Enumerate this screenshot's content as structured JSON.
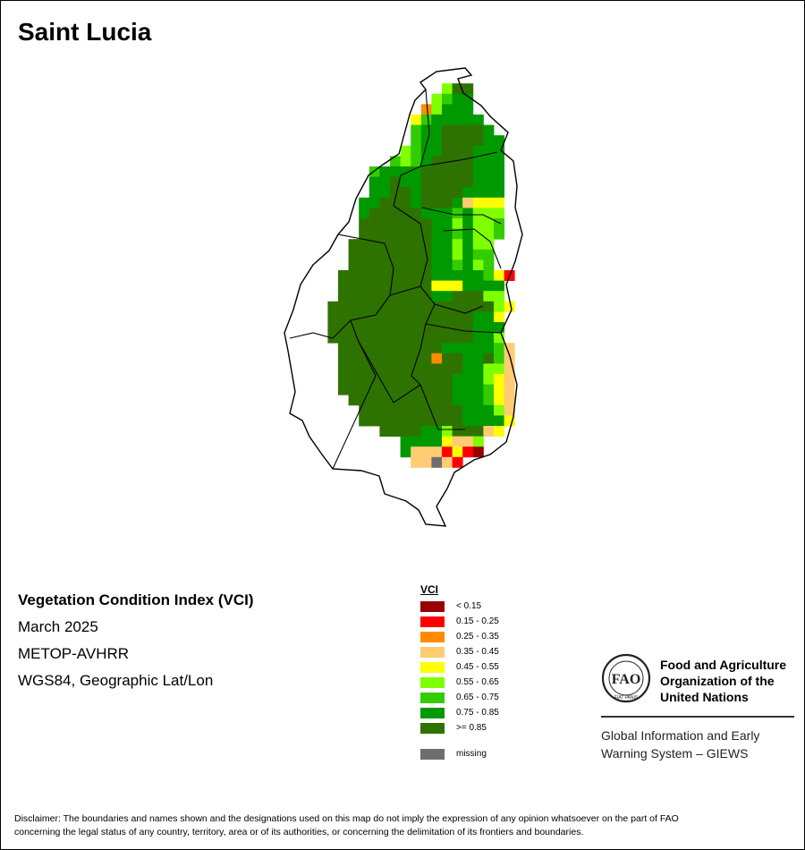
{
  "page": {
    "title": "Saint Lucia"
  },
  "map": {
    "country": "Saint Lucia",
    "grid_cols": 23,
    "grid_rows": 40,
    "code_meaning": {
      "0": "outside",
      "1": "< 0.15",
      "2": "0.15 - 0.25",
      "3": "0.25 - 0.35",
      "4": "0.35 - 0.45",
      "5": "0.45 - 0.55",
      "6": "0.55 - 0.65",
      "7": "0.65 - 0.75",
      "8": "0.75 - 0.85",
      "9": ">= 0.85",
      "m": "missing"
    },
    "cells": [
      "00000000000000000000000",
      "00000000000000000000000",
      "00000000000000069900000",
      "00000000000000678800000",
      "00000000000003688800000",
      "00000000000057888880000",
      "00000000000078899998000",
      "00000000000078899998800",
      "00000000000678899988800",
      "00000000007678999988800",
      "00000000788889999988800",
      "00000000889889999988800",
      "00000000889989999888800",
      "00000008899989998455500",
      "00000008999998887866600",
      "00000009999999886866700",
      "00000009999999887866700",
      "00000099999999886866000",
      "00000099999999886877000",
      "00000099999999887867000",
      "00000999999999888887520",
      "00000999999999555888800",
      "00000999999999889996600",
      "00009999999999999999650",
      "00009999999999999988500",
      "00009999999999999988800",
      "00009999999999999988600",
      "00000999999999988888740",
      "00000999999999399889740",
      "00000999999999999886640",
      "00000999999999998886540",
      "00000999999999998887540",
      "00000099999999998887540",
      "00000009999999999888640",
      "00000009999999999888850",
      "00000000099998869994500",
      "00000000000888854460000",
      "00000000000844425210000",
      "00000000000044m42000000",
      "00000000000000000000000"
    ]
  },
  "info": {
    "index_title": "Vegetation Condition Index (VCI)",
    "period": "March 2025",
    "sensor": "METOP-AVHRR",
    "projection": "WGS84, Geographic Lat/Lon"
  },
  "legend": {
    "title": "VCI",
    "items": [
      {
        "label": "< 0.15",
        "color": "#990000"
      },
      {
        "label": "0.15 - 0.25",
        "color": "#ff0000"
      },
      {
        "label": "0.25 - 0.35",
        "color": "#ff8c00"
      },
      {
        "label": "0.35 - 0.45",
        "color": "#ffcc73"
      },
      {
        "label": "0.45 - 0.55",
        "color": "#ffff00"
      },
      {
        "label": "0.55 - 0.65",
        "color": "#80ff00"
      },
      {
        "label": "0.65 - 0.75",
        "color": "#33cc00"
      },
      {
        "label": "0.75 - 0.85",
        "color": "#009900"
      },
      {
        "label": ">= 0.85",
        "color": "#2e7300"
      }
    ],
    "missing": {
      "label": "missing",
      "color": "#6e6e6e"
    }
  },
  "org": {
    "logo_text": "FAO",
    "logo_motto": "FIAT PANIS",
    "name_line1": "Food and Agriculture",
    "name_line2": "Organization of the",
    "name_line3": "United Nations",
    "system_line1": "Global Information and Early",
    "system_line2": "Warning System – GIEWS"
  },
  "disclaimer": {
    "line1": "Disclaimer: The boundaries and names shown and the designations used on this map do not imply the expression of any opinion whatsoever on the part of FAO",
    "line2": "concerning the legal status of any country, territory, area or of its authorities, or concerning the delimitation of its frontiers and boundaries."
  }
}
